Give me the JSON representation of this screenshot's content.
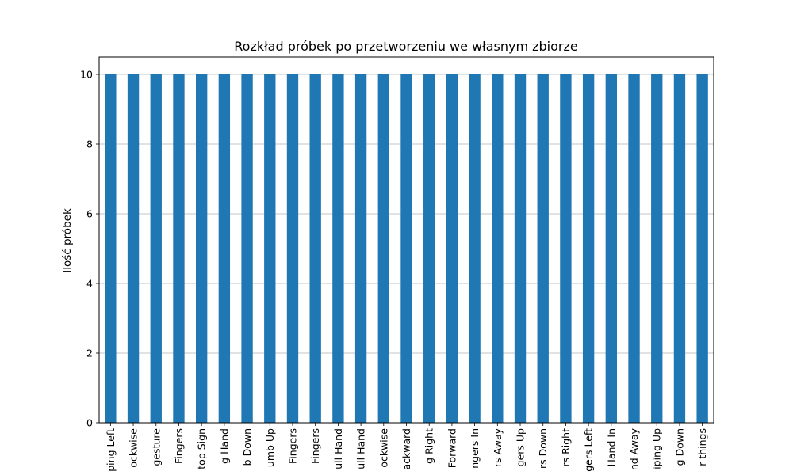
{
  "chart_data": {
    "type": "bar",
    "title": "Rozkład próbek po przetworzeniu we własnym zbiorze",
    "xlabel": "",
    "ylabel": "Ilość próbek",
    "ylim": [
      0,
      10.5
    ],
    "yticks": [
      0,
      2,
      4,
      6,
      8,
      10
    ],
    "grid": true,
    "color": "#1f77b4",
    "categories": [
      "ping Left",
      "ockwise",
      "gesture",
      "Fingers",
      "top Sign",
      "g Hand",
      "b Down",
      "umb Up",
      "Fingers",
      "Fingers",
      "ull Hand",
      "ull Hand",
      "ockwise",
      "ackward",
      "g Right",
      "Forward",
      "ngers In",
      "rs Away",
      "gers Up",
      "rs Down",
      "rs Right",
      "gers Left",
      "Hand In",
      "nd Away",
      "iping Up",
      "g Down",
      "r things"
    ],
    "values": [
      10,
      10,
      10,
      10,
      10,
      10,
      10,
      10,
      10,
      10,
      10,
      10,
      10,
      10,
      10,
      10,
      10,
      10,
      10,
      10,
      10,
      10,
      10,
      10,
      10,
      10,
      10
    ]
  }
}
